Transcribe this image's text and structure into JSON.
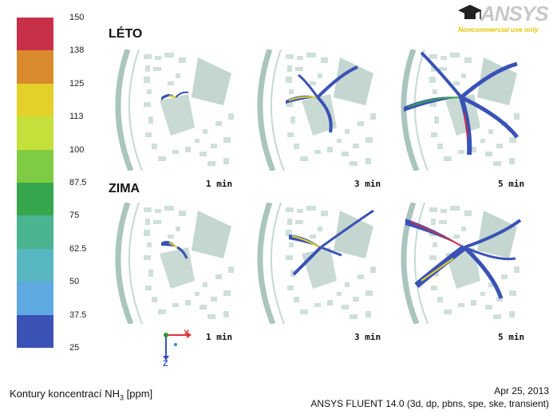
{
  "logo": {
    "brand": "ANSYS",
    "subtitle": "Noncommercial use only"
  },
  "colorbar": {
    "ticks": [
      "150",
      "138",
      "125",
      "113",
      "100",
      "87.5",
      "75",
      "62.5",
      "50",
      "37.5",
      "25"
    ],
    "colors": [
      "#c8304a",
      "#d98a2c",
      "#e3d12a",
      "#c5e03a",
      "#7fcc44",
      "#35a64c",
      "#4ab490",
      "#58b6c0",
      "#5fa9e2",
      "#3a52b6"
    ]
  },
  "sections": {
    "summer": "LÉTO",
    "winter": "ZIMA"
  },
  "times": {
    "summer": [
      "1 min",
      "3 min",
      "5 min"
    ],
    "winter": [
      "1 min",
      "3 min",
      "5 min"
    ]
  },
  "axes": {
    "x": "X",
    "z": "Z"
  },
  "footer": {
    "caption_main": "Kontury koncentrací NH",
    "caption_sub": "3",
    "caption_unit": " [ppm]",
    "date": "Apr 25, 2013",
    "app": "ANSYS FLUENT 14.0 (3d, dp, pbns, spe, ske, transient)"
  }
}
